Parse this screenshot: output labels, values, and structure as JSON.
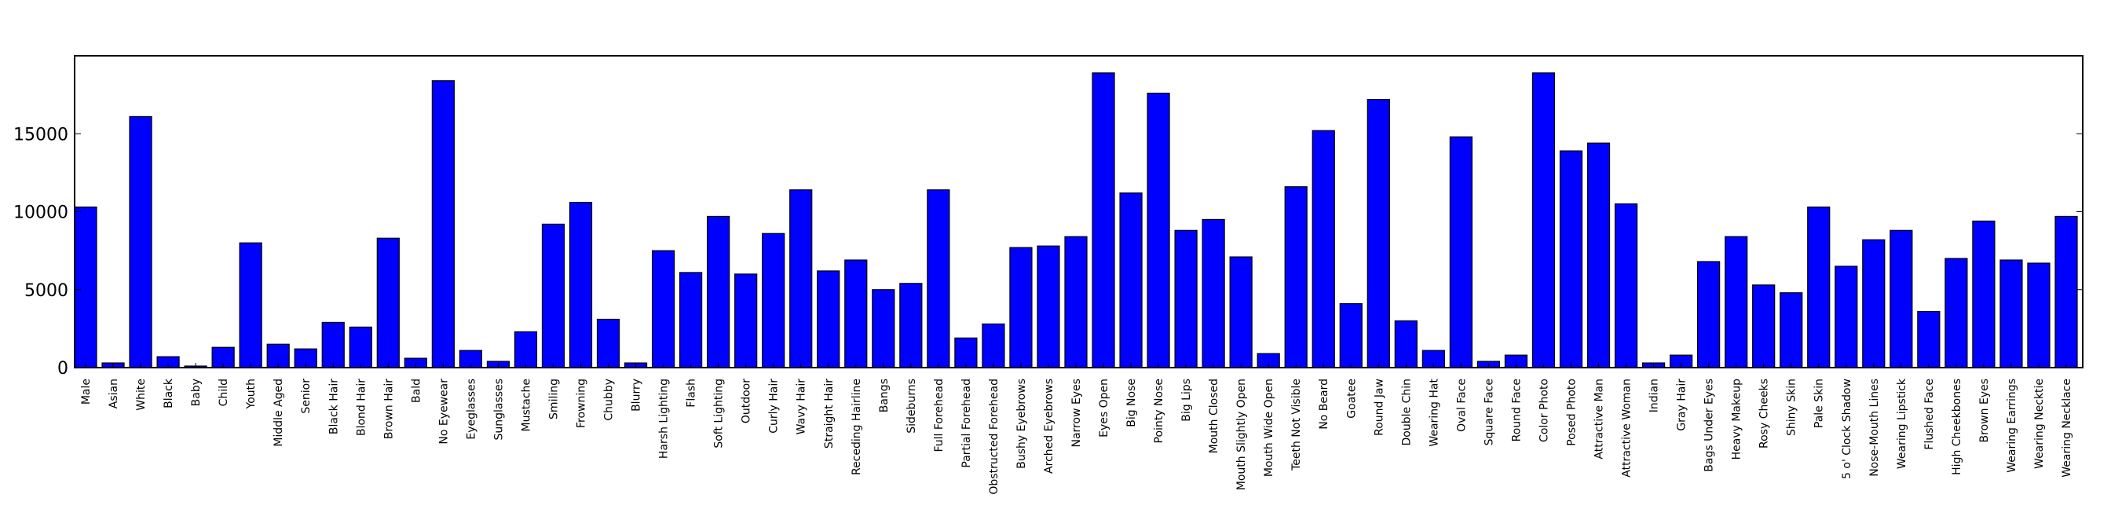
{
  "chart_data": {
    "type": "bar",
    "title": "",
    "xlabel": "",
    "ylabel": "",
    "ylim": [
      0,
      20000
    ],
    "yticks": [
      0,
      5000,
      10000,
      15000
    ],
    "ytick_labels": [
      "0",
      "5000",
      "10000",
      "15000"
    ],
    "grid": false,
    "legend": "none",
    "bar_color": "#0000ff",
    "edge_color": "#000000",
    "categories": [
      "Male",
      "Asian",
      "White",
      "Black",
      "Baby",
      "Child",
      "Youth",
      "Middle Aged",
      "Senior",
      "Black Hair",
      "Blond Hair",
      "Brown Hair",
      "Bald",
      "No Eyewear",
      "Eyeglasses",
      "Sunglasses",
      "Mustache",
      "Smiling",
      "Frowning",
      "Chubby",
      "Blurry",
      "Harsh Lighting",
      "Flash",
      "Soft Lighting",
      "Outdoor",
      "Curly Hair",
      "Wavy Hair",
      "Straight Hair",
      "Receding Hairline",
      "Bangs",
      "Sideburns",
      "Full Forehead",
      "Partial Forehead",
      "Obstructed Forehead",
      "Bushy Eyebrows",
      "Arched Eyebrows",
      "Narrow Eyes",
      "Eyes Open",
      "Big Nose",
      "Pointy Nose",
      "Big Lips",
      "Mouth Closed",
      "Mouth Slightly Open",
      "Mouth Wide Open",
      "Teeth Not Visible",
      "No Beard",
      "Goatee",
      "Round Jaw",
      "Double Chin",
      "Wearing Hat",
      "Oval Face",
      "Square Face",
      "Round Face",
      "Color Photo",
      "Posed Photo",
      "Attractive Man",
      "Attractive Woman",
      "Indian",
      "Gray Hair",
      "Bags Under Eyes",
      "Heavy Makeup",
      "Rosy Cheeks",
      "Shiny Skin",
      "Pale Skin",
      "5 o' Clock Shadow",
      "Nose-Mouth Lines",
      "Wearing Lipstick",
      "Flushed Face",
      "High Cheekbones",
      "Brown Eyes",
      "Wearing Earrings",
      "Wearing Necktie",
      "Wearing Necklace"
    ],
    "values": [
      10300,
      300,
      16100,
      700,
      100,
      1300,
      8000,
      1500,
      1200,
      2900,
      2600,
      8300,
      600,
      18400,
      1100,
      400,
      2300,
      9200,
      10600,
      3100,
      300,
      7500,
      6100,
      9700,
      6000,
      8600,
      11400,
      6200,
      6900,
      5000,
      5400,
      11400,
      1900,
      2800,
      7700,
      7800,
      8400,
      18900,
      11200,
      17600,
      8800,
      9500,
      7100,
      900,
      11600,
      15200,
      4100,
      17200,
      3000,
      1100,
      14800,
      400,
      800,
      18900,
      13900,
      14400,
      10500,
      300,
      800,
      6800,
      8400,
      5300,
      4800,
      10300,
      6500,
      8200,
      8800,
      3600,
      7000,
      9400,
      6900,
      6700,
      9700
    ]
  }
}
